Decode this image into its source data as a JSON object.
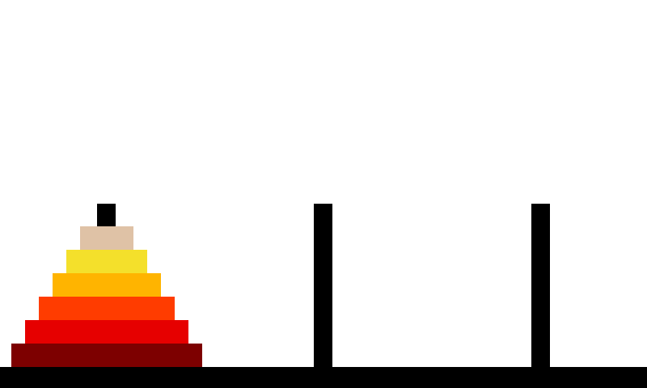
{
  "game": {
    "name": "towers-of-hanoi",
    "pegs": [
      {
        "name": "peg-1",
        "disks": [
          6,
          5,
          4,
          3,
          2,
          1
        ]
      },
      {
        "name": "peg-2",
        "disks": []
      },
      {
        "name": "peg-3",
        "disks": []
      }
    ],
    "disk_colors": {
      "1": "#dfc2a6",
      "2": "#f4e02b",
      "3": "#ffb400",
      "4": "#ff3c00",
      "5": "#e60000",
      "6": "#7d0000"
    },
    "peg_color": "#000000",
    "base_color": "#000000",
    "background_color": "#ffffff"
  }
}
